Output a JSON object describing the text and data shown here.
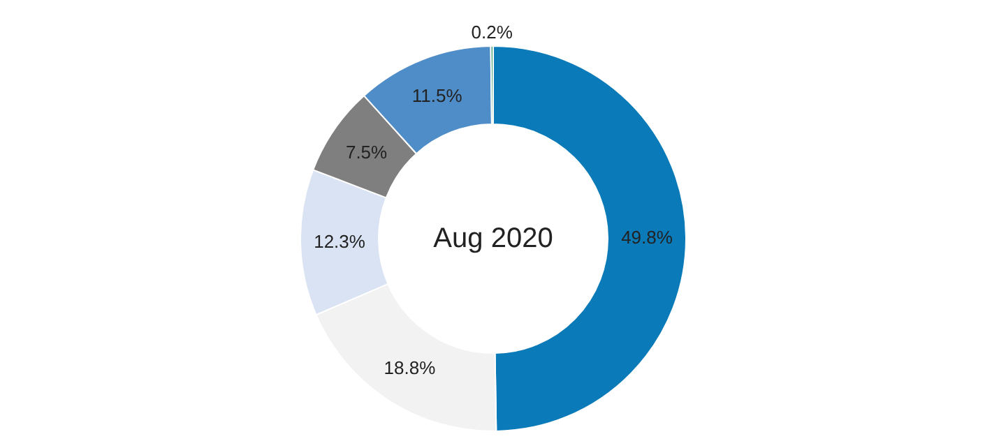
{
  "chart_data": {
    "type": "donut",
    "title": "Aug 2020",
    "categories": [
      null,
      null,
      null,
      null,
      null,
      null
    ],
    "values": [
      49.8,
      18.8,
      12.3,
      7.5,
      11.5,
      0.2
    ],
    "colors": [
      "#0a7ab8",
      "#f2f2f2",
      "#dae3f3",
      "#7f7f7f",
      "#4f8dc9",
      "#3f9a78"
    ],
    "value_labels": [
      "49.8%",
      "18.8%",
      "12.3%",
      "7.5%",
      "11.5%",
      "0.2%"
    ]
  }
}
